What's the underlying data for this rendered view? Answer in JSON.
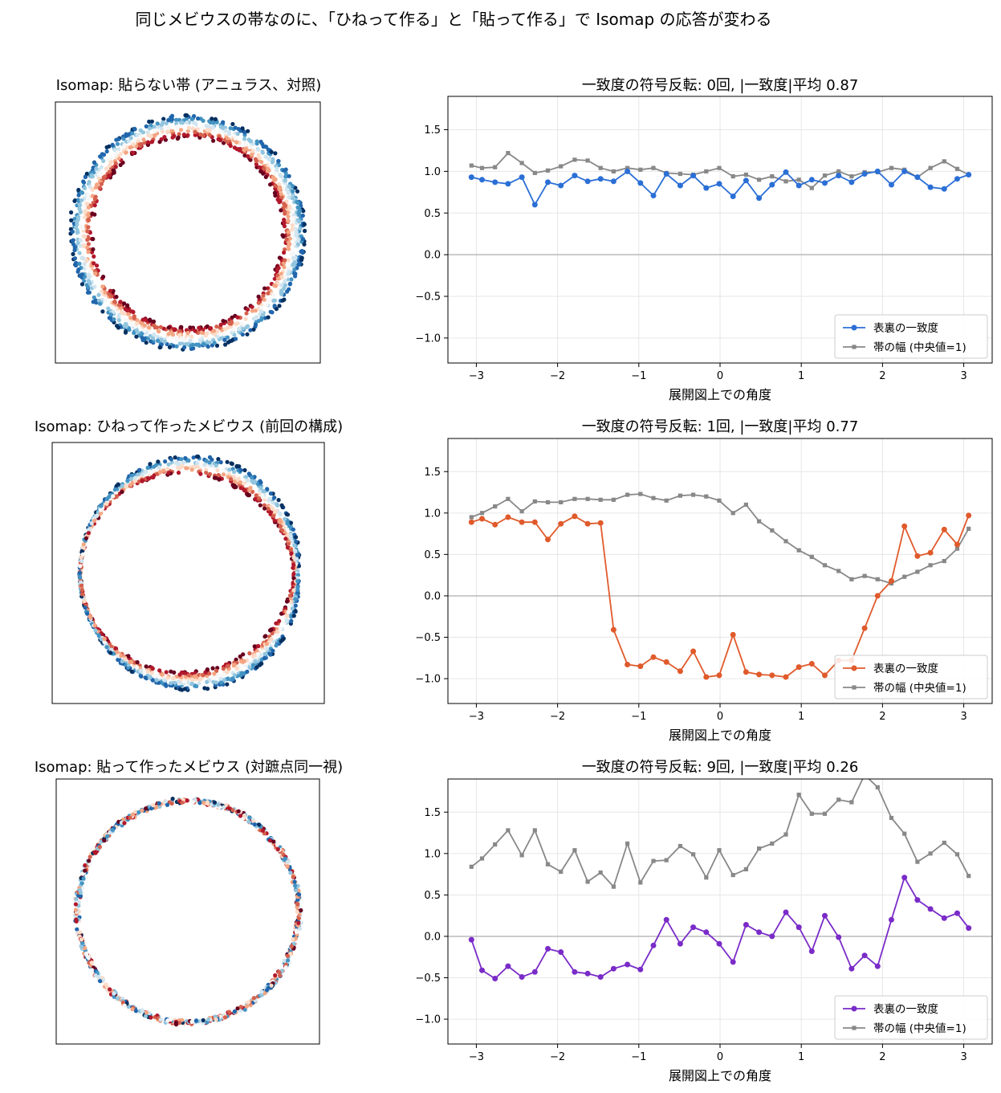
{
  "suptitle": "同じメビウスの帯なのに、「ひねって作る」と「貼って作る」で Isomap の応答が変わる",
  "colors": {
    "agreement_ribbon": "#2b6fd6",
    "agreement_twist": "#e05a2b",
    "agreement_glued": "#7a2bc8",
    "width": "#888888",
    "zero_line": "#bbbbbb",
    "grid": "#e6e6e6"
  },
  "scatter_titles": [
    "Isomap: 貼らない帯 (アニュラス、対照)",
    "Isomap: ひねって作ったメビウス (前回の構成)",
    "Isomap: 貼って作ったメビウス (対蹠点同一視)"
  ],
  "chart_data": [
    {
      "type": "line",
      "title": "一致度の符号反転: 0回, |一致度|平均 0.87",
      "xlabel": "展開図上での角度",
      "ylabel": "",
      "xlim": [
        -3.35,
        3.35
      ],
      "ylim": [
        -1.3,
        1.9
      ],
      "xticks": [
        -3,
        -2,
        -1,
        0,
        1,
        2,
        3
      ],
      "xtick_labels": [
        "−3",
        "−2",
        "−1",
        "0",
        "1",
        "2",
        "3"
      ],
      "yticks": [
        -1.0,
        -0.5,
        0.0,
        0.5,
        1.0,
        1.5
      ],
      "ytick_labels": [
        "−1.0",
        "−0.5",
        "0.0",
        "0.5",
        "1.0",
        "1.5"
      ],
      "legend_position": "lower right",
      "x": [
        -3.06,
        -2.93,
        -2.77,
        -2.61,
        -2.44,
        -2.28,
        -2.12,
        -1.96,
        -1.79,
        -1.63,
        -1.47,
        -1.31,
        -1.14,
        -0.98,
        -0.82,
        -0.66,
        -0.49,
        -0.33,
        -0.17,
        -0.01,
        0.16,
        0.32,
        0.48,
        0.64,
        0.81,
        0.97,
        1.13,
        1.29,
        1.46,
        1.62,
        1.78,
        1.94,
        2.11,
        2.27,
        2.43,
        2.59,
        2.76,
        2.92,
        3.06
      ],
      "series": [
        {
          "name": "表裏の一致度",
          "marker": "circle",
          "values": [
            0.93,
            0.9,
            0.87,
            0.85,
            0.93,
            0.6,
            0.87,
            0.83,
            0.95,
            0.88,
            0.91,
            0.88,
            1.0,
            0.86,
            0.71,
            0.97,
            0.83,
            0.95,
            0.8,
            0.85,
            0.7,
            0.89,
            0.68,
            0.84,
            0.99,
            0.83,
            0.9,
            0.86,
            0.95,
            0.87,
            0.97,
            1.0,
            0.84,
            1.0,
            0.93,
            0.81,
            0.79,
            0.91,
            0.96
          ]
        },
        {
          "name": "帯の幅 (中央値=1)",
          "marker": "square",
          "values": [
            1.07,
            1.04,
            1.05,
            1.22,
            1.1,
            0.98,
            1.01,
            1.06,
            1.14,
            1.13,
            1.04,
            1.0,
            1.04,
            1.02,
            1.04,
            0.98,
            0.97,
            0.96,
            1.0,
            1.04,
            0.94,
            0.96,
            0.9,
            0.94,
            0.88,
            0.9,
            0.8,
            0.95,
            1.0,
            0.94,
            0.99,
            0.99,
            1.04,
            1.02,
            0.93,
            1.04,
            1.12,
            1.03,
            0.96
          ]
        }
      ]
    },
    {
      "type": "line",
      "title": "一致度の符号反転: 1回, |一致度|平均 0.77",
      "xlabel": "展開図上での角度",
      "ylabel": "",
      "xlim": [
        -3.35,
        3.35
      ],
      "ylim": [
        -1.3,
        1.9
      ],
      "xticks": [
        -3,
        -2,
        -1,
        0,
        1,
        2,
        3
      ],
      "xtick_labels": [
        "−3",
        "−2",
        "−1",
        "0",
        "1",
        "2",
        "3"
      ],
      "yticks": [
        -1.0,
        -0.5,
        0.0,
        0.5,
        1.0,
        1.5
      ],
      "ytick_labels": [
        "−1.0",
        "−0.5",
        "0.0",
        "0.5",
        "1.0",
        "1.5"
      ],
      "legend_position": "lower right",
      "x": [
        -3.06,
        -2.93,
        -2.77,
        -2.61,
        -2.44,
        -2.28,
        -2.12,
        -1.96,
        -1.79,
        -1.63,
        -1.47,
        -1.31,
        -1.14,
        -0.98,
        -0.82,
        -0.66,
        -0.49,
        -0.33,
        -0.17,
        -0.01,
        0.16,
        0.32,
        0.48,
        0.64,
        0.81,
        0.97,
        1.13,
        1.29,
        1.46,
        1.62,
        1.78,
        1.94,
        2.11,
        2.27,
        2.43,
        2.59,
        2.76,
        2.92,
        3.06
      ],
      "series": [
        {
          "name": "表裏の一致度",
          "marker": "circle",
          "values": [
            0.89,
            0.93,
            0.86,
            0.95,
            0.89,
            0.89,
            0.68,
            0.87,
            0.96,
            0.87,
            0.88,
            -0.41,
            -0.83,
            -0.85,
            -0.74,
            -0.8,
            -0.91,
            -0.67,
            -0.98,
            -0.96,
            -0.47,
            -0.92,
            -0.95,
            -0.96,
            -0.98,
            -0.86,
            -0.82,
            -0.96,
            -0.78,
            -0.78,
            -0.39,
            0.0,
            0.18,
            0.84,
            0.48,
            0.52,
            0.8,
            0.62,
            0.97
          ]
        },
        {
          "name": "帯の幅 (中央値=1)",
          "marker": "square",
          "values": [
            0.95,
            1.0,
            1.08,
            1.17,
            1.02,
            1.14,
            1.13,
            1.13,
            1.17,
            1.17,
            1.16,
            1.16,
            1.22,
            1.23,
            1.18,
            1.15,
            1.21,
            1.22,
            1.2,
            1.15,
            1.0,
            1.1,
            0.9,
            0.79,
            0.66,
            0.55,
            0.47,
            0.37,
            0.3,
            0.2,
            0.24,
            0.2,
            0.15,
            0.23,
            0.29,
            0.37,
            0.42,
            0.57,
            0.81
          ]
        }
      ]
    },
    {
      "type": "line",
      "title": "一致度の符号反転: 9回, |一致度|平均 0.26",
      "xlabel": "展開図上での角度",
      "ylabel": "",
      "xlim": [
        -3.35,
        3.35
      ],
      "ylim": [
        -1.3,
        1.9
      ],
      "xticks": [
        -3,
        -2,
        -1,
        0,
        1,
        2,
        3
      ],
      "xtick_labels": [
        "−3",
        "−2",
        "−1",
        "0",
        "1",
        "2",
        "3"
      ],
      "yticks": [
        -1.0,
        -0.5,
        0.0,
        0.5,
        1.0,
        1.5
      ],
      "ytick_labels": [
        "−1.0",
        "−0.5",
        "0.0",
        "0.5",
        "1.0",
        "1.5"
      ],
      "legend_position": "lower right",
      "x": [
        -3.06,
        -2.93,
        -2.77,
        -2.61,
        -2.44,
        -2.28,
        -2.12,
        -1.96,
        -1.79,
        -1.63,
        -1.47,
        -1.31,
        -1.14,
        -0.98,
        -0.82,
        -0.66,
        -0.49,
        -0.33,
        -0.17,
        -0.01,
        0.16,
        0.32,
        0.48,
        0.64,
        0.81,
        0.97,
        1.13,
        1.29,
        1.46,
        1.62,
        1.78,
        1.94,
        2.11,
        2.27,
        2.43,
        2.59,
        2.76,
        2.92,
        3.06
      ],
      "series": [
        {
          "name": "表裏の一致度",
          "marker": "circle",
          "values": [
            -0.04,
            -0.41,
            -0.51,
            -0.36,
            -0.49,
            -0.43,
            -0.15,
            -0.19,
            -0.43,
            -0.45,
            -0.49,
            -0.39,
            -0.34,
            -0.4,
            -0.11,
            0.2,
            -0.09,
            0.11,
            0.05,
            -0.09,
            -0.31,
            0.14,
            0.05,
            0.0,
            0.29,
            0.11,
            -0.18,
            0.25,
            -0.01,
            -0.39,
            -0.23,
            -0.36,
            0.2,
            0.71,
            0.44,
            0.33,
            0.22,
            0.28,
            0.1
          ]
        },
        {
          "name": "帯の幅 (中央値=1)",
          "marker": "square",
          "values": [
            0.84,
            0.94,
            1.11,
            1.28,
            0.98,
            1.28,
            0.87,
            0.78,
            1.04,
            0.66,
            0.77,
            0.6,
            1.12,
            0.65,
            0.91,
            0.92,
            1.09,
            0.99,
            0.71,
            1.04,
            0.74,
            0.81,
            1.06,
            1.12,
            1.23,
            1.71,
            1.48,
            1.48,
            1.65,
            1.62,
            1.95,
            1.8,
            1.43,
            1.24,
            0.9,
            1.0,
            1.13,
            0.99,
            0.73
          ]
        }
      ]
    }
  ]
}
